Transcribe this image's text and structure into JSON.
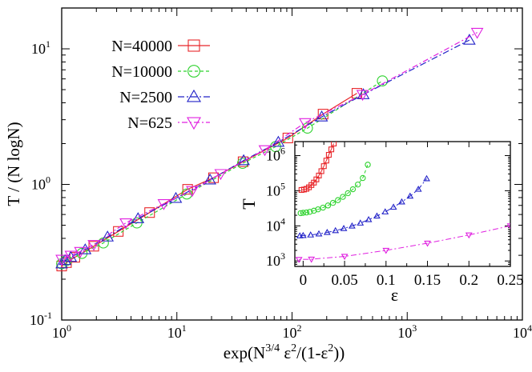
{
  "chart_data": [
    {
      "type": "line",
      "xscale": "log",
      "yscale": "log",
      "xlim": [
        1,
        10000
      ],
      "ylim": [
        0.1,
        20
      ],
      "xlabel_parts": [
        "exp(N",
        "3/4",
        " ε",
        "2",
        "/(1-ε",
        "2",
        "))"
      ],
      "ylabel": "T / (N logN)",
      "x_ticks": [
        {
          "value": 1,
          "base": "10",
          "exp": "0"
        },
        {
          "value": 10,
          "base": "10",
          "exp": "1"
        },
        {
          "value": 100,
          "base": "10",
          "exp": "2"
        },
        {
          "value": 1000,
          "base": "10",
          "exp": "3"
        },
        {
          "value": 10000,
          "base": "10",
          "exp": "4"
        }
      ],
      "y_ticks": [
        {
          "value": 0.1,
          "base": "10",
          "exp": "-1"
        },
        {
          "value": 1,
          "base": "10",
          "exp": "0"
        },
        {
          "value": 10,
          "base": "10",
          "exp": "1"
        }
      ],
      "legend_position": "top-left",
      "series": [
        {
          "name": "N=40000",
          "color": "#e8262a",
          "marker": "square",
          "dash": "",
          "x": [
            1.0,
            1.1,
            1.3,
            1.9,
            3.1,
            5.8,
            12.4,
            20.8,
            37.6,
            92,
            186,
            366
          ],
          "y": [
            0.25,
            0.265,
            0.29,
            0.35,
            0.45,
            0.62,
            0.92,
            1.12,
            1.47,
            2.2,
            3.3,
            4.7
          ]
        },
        {
          "name": "N=10000",
          "color": "#2fd32f",
          "marker": "circle",
          "dash": "4,3",
          "x": [
            1.0,
            1.1,
            1.5,
            2.3,
            4.5,
            12.2,
            37.2,
            72,
            136,
            609
          ],
          "y": [
            0.26,
            0.275,
            0.31,
            0.37,
            0.52,
            0.85,
            1.43,
            1.9,
            2.6,
            5.8
          ]
        },
        {
          "name": "N=2500",
          "color": "#2323c8",
          "marker": "triangle-up",
          "dash": "8,3,2,3",
          "x": [
            1.0,
            1.07,
            1.2,
            1.6,
            2.5,
            4.6,
            9.8,
            19.4,
            38,
            76,
            181,
            416,
            3468
          ],
          "y": [
            0.26,
            0.275,
            0.29,
            0.33,
            0.41,
            0.56,
            0.79,
            1.08,
            1.5,
            2.05,
            3.15,
            4.6,
            11.6
          ]
        },
        {
          "name": "N=625",
          "color": "#e020e0",
          "marker": "triangle-down",
          "dash": "2,3,7,3",
          "x": [
            1.0,
            1.2,
            1.45,
            1.9,
            3.6,
            7.7,
            13.6,
            24,
            58,
            130,
            410,
            4050
          ],
          "y": [
            0.28,
            0.3,
            0.32,
            0.36,
            0.52,
            0.72,
            0.9,
            1.2,
            1.8,
            2.85,
            4.6,
            13.2
          ]
        }
      ]
    },
    {
      "type": "line",
      "yscale": "log",
      "xlim": [
        -0.01,
        0.25
      ],
      "ylim": [
        700,
        2500000
      ],
      "xlabel": "ε",
      "ylabel": "T",
      "x_ticks": [
        {
          "value": 0,
          "label": "0"
        },
        {
          "value": 0.05,
          "label": "0.05"
        },
        {
          "value": 0.1,
          "label": "0.1"
        },
        {
          "value": 0.15,
          "label": "0.15"
        },
        {
          "value": 0.2,
          "label": "0.2"
        },
        {
          "value": 0.25,
          "label": "0.25"
        }
      ],
      "y_ticks": [
        {
          "value": 1000,
          "base": "10",
          "exp": "3"
        },
        {
          "value": 10000,
          "base": "10",
          "exp": "4"
        },
        {
          "value": 100000,
          "base": "10",
          "exp": "5"
        },
        {
          "value": 1000000,
          "base": "10",
          "exp": "6"
        }
      ],
      "series": [
        {
          "name": "N=40000",
          "color": "#e8262a",
          "marker": "square",
          "dash": "",
          "x": [
            -0.002,
            0.001,
            0.004,
            0.007,
            0.01,
            0.013,
            0.016,
            0.019,
            0.022,
            0.025,
            0.028,
            0.031,
            0.034,
            0.037
          ],
          "y": [
            105000,
            108000,
            113000,
            125000,
            145000,
            170000,
            210000,
            270000,
            360000,
            500000,
            720000,
            1050000,
            1500000,
            2200000
          ]
        },
        {
          "name": "N=10000",
          "color": "#2fd32f",
          "marker": "circle",
          "dash": "4,3",
          "x": [
            -0.003,
            0.0,
            0.004,
            0.008,
            0.013,
            0.018,
            0.024,
            0.03,
            0.036,
            0.042,
            0.048,
            0.054,
            0.06,
            0.066,
            0.072,
            0.078
          ],
          "y": [
            23000,
            23500,
            24000,
            25000,
            27000,
            29500,
            33000,
            38000,
            45000,
            54000,
            67000,
            85000,
            110000,
            150000,
            230000,
            550000
          ]
        },
        {
          "name": "N=2500",
          "color": "#2323c8",
          "marker": "triangle-up",
          "dash": "8,3,2,3",
          "x": [
            -0.004,
            0.0,
            0.009,
            0.019,
            0.029,
            0.039,
            0.049,
            0.059,
            0.069,
            0.079,
            0.089,
            0.099,
            0.109,
            0.119,
            0.129,
            0.139,
            0.149
          ],
          "y": [
            5200,
            5300,
            5500,
            5900,
            6500,
            7300,
            8400,
            9900,
            12000,
            15000,
            19000,
            25000,
            34000,
            48000,
            70000,
            110000,
            220000
          ]
        },
        {
          "name": "N=625",
          "color": "#e020e0",
          "marker": "triangle-down",
          "dash": "2,3,7,3",
          "x": [
            -0.005,
            0.01,
            0.05,
            0.1,
            0.15,
            0.2,
            0.25
          ],
          "y": [
            1100,
            1120,
            1350,
            2000,
            3200,
            5500,
            10000
          ]
        }
      ]
    }
  ]
}
